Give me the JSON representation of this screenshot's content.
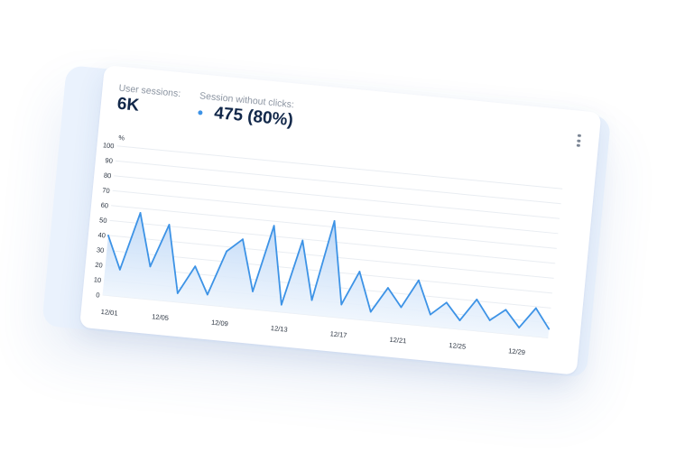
{
  "widget": {
    "sessions_label": "User sessions:",
    "sessions_value": "6K",
    "no_clicks_label": "Session without clicks:",
    "no_clicks_value": "475 (80%)",
    "menu_icon": "more-vertical-icon"
  },
  "colors": {
    "accent": "#3d93e6",
    "fill_top": "#b9d5f6",
    "fill_bottom": "#eef5fd",
    "grid": "#e9edf2",
    "halo": "#eaf2fd"
  },
  "chart_data": {
    "type": "area",
    "ylabel": "%",
    "ylim": [
      0,
      100
    ],
    "yticks": [
      0,
      10,
      20,
      30,
      40,
      50,
      60,
      70,
      80,
      90,
      100
    ],
    "xticks": [
      "12/01",
      "12/05",
      "12/09",
      "12/13",
      "12/17",
      "12/21",
      "12/25",
      "12/29"
    ],
    "grid": true,
    "series": [
      {
        "values": [
          40,
          18,
          57,
          22,
          51,
          6,
          25,
          7,
          37,
          46,
          12,
          57,
          5,
          49,
          10,
          64,
          9,
          32,
          6,
          23,
          11,
          30,
          8,
          17,
          6,
          21,
          8,
          16,
          5,
          19,
          6
        ]
      }
    ]
  }
}
